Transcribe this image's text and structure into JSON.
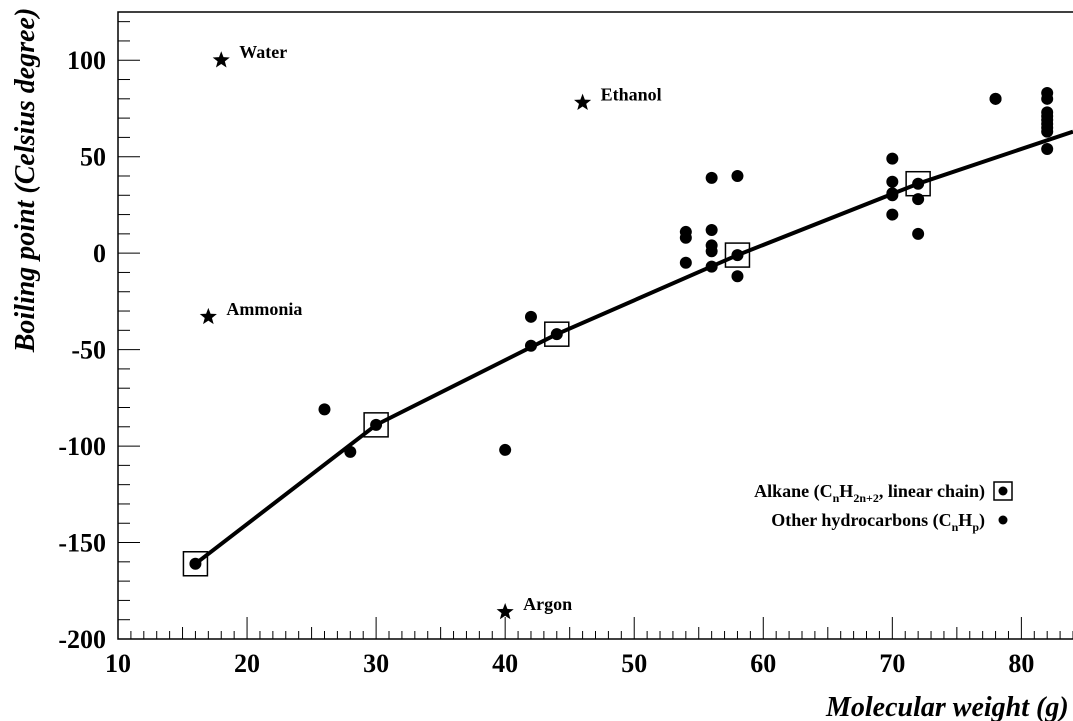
{
  "chart_data": {
    "type": "scatter",
    "xlabel": "Molecular weight (g)",
    "ylabel": "Boiling point (Celsius degree)",
    "xlim": [
      10,
      84
    ],
    "ylim": [
      -200,
      125
    ],
    "x_ticks": [
      10,
      20,
      30,
      40,
      50,
      60,
      70,
      80
    ],
    "y_ticks": [
      -200,
      -150,
      -100,
      -50,
      0,
      50,
      100
    ],
    "x_tick_labels": [
      "10",
      "20",
      "30",
      "40",
      "50",
      "60",
      "70",
      "80"
    ],
    "y_tick_labels": [
      "-200",
      "-150",
      "-100",
      "-50",
      "0",
      "50",
      "100"
    ],
    "grid": false,
    "legend_position": "bottom-right",
    "legend": [
      {
        "parts": [
          {
            "text": "Alkane (C",
            "sub": false
          },
          {
            "text": "n",
            "sub": true
          },
          {
            "text": "H",
            "sub": false
          },
          {
            "text": "2n+2",
            "sub": true
          },
          {
            "text": ", linear chain)",
            "sub": false
          }
        ],
        "marker": "boxed-dot"
      },
      {
        "parts": [
          {
            "text": "Other hydrocarbons (C",
            "sub": false
          },
          {
            "text": "n",
            "sub": true
          },
          {
            "text": "H",
            "sub": false
          },
          {
            "text": "p",
            "sub": true
          },
          {
            "text": ")",
            "sub": false
          }
        ],
        "marker": "dot"
      }
    ],
    "series": [
      {
        "marker": "boxed-dot",
        "points": [
          [
            16,
            -161
          ],
          [
            30,
            -89
          ],
          [
            44,
            -42
          ],
          [
            58,
            -1
          ],
          [
            72,
            36
          ]
        ]
      },
      {
        "marker": "dot",
        "points": [
          [
            16,
            -161
          ],
          [
            26,
            -81
          ],
          [
            28,
            -103
          ],
          [
            30,
            -89
          ],
          [
            40,
            -102
          ],
          [
            42,
            -48
          ],
          [
            42,
            -33
          ],
          [
            44,
            -42
          ],
          [
            54,
            -5
          ],
          [
            54,
            8
          ],
          [
            54,
            11
          ],
          [
            56,
            -7
          ],
          [
            56,
            1
          ],
          [
            56,
            4
          ],
          [
            56,
            12
          ],
          [
            56,
            39
          ],
          [
            58,
            -1
          ],
          [
            58,
            -12
          ],
          [
            58,
            40
          ],
          [
            70,
            20
          ],
          [
            70,
            30
          ],
          [
            70,
            31
          ],
          [
            70,
            37
          ],
          [
            70,
            49
          ],
          [
            72,
            10
          ],
          [
            72,
            28
          ],
          [
            72,
            36
          ],
          [
            78,
            80
          ],
          [
            78,
            80
          ],
          [
            82,
            54
          ],
          [
            82,
            63
          ],
          [
            82,
            65
          ],
          [
            82,
            67
          ],
          [
            82,
            69
          ],
          [
            82,
            71
          ],
          [
            82,
            73
          ],
          [
            82,
            80
          ],
          [
            82,
            83
          ]
        ]
      },
      {
        "marker": "line",
        "points": [
          [
            16,
            -161
          ],
          [
            30,
            -89
          ],
          [
            44,
            -42
          ],
          [
            58,
            -1
          ],
          [
            72,
            36
          ],
          [
            84,
            63
          ]
        ]
      },
      {
        "marker": "star",
        "points": [
          [
            18,
            100
          ],
          [
            46,
            78
          ],
          [
            17,
            -33
          ],
          [
            40,
            -186
          ]
        ],
        "labels": [
          "Water",
          "Ethanol",
          "Ammonia",
          "Argon"
        ]
      }
    ]
  }
}
